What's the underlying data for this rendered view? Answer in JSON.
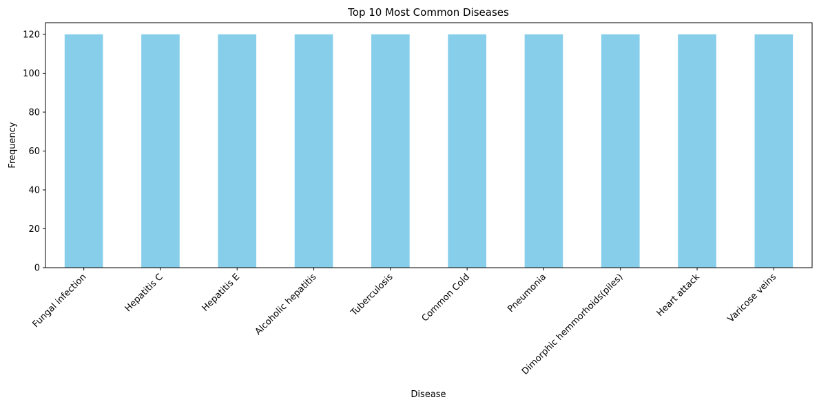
{
  "chart_data": {
    "type": "bar",
    "title": "Top 10 Most Common Diseases",
    "xlabel": "Disease",
    "ylabel": "Frequency",
    "categories": [
      "Fungal infection",
      "Hepatitis C",
      "Hepatitis E",
      "Alcoholic hepatitis",
      "Tuberculosis",
      "Common Cold",
      "Pneumonia",
      "Dimorphic hemmorhoids(piles)",
      "Heart attack",
      "Varicose veins"
    ],
    "values": [
      120,
      120,
      120,
      120,
      120,
      120,
      120,
      120,
      120,
      120
    ],
    "ylim": [
      0,
      126
    ],
    "yticks": [
      0,
      20,
      40,
      60,
      80,
      100,
      120
    ],
    "bar_color": "#87ceeb",
    "grid": false,
    "legend": "none"
  }
}
